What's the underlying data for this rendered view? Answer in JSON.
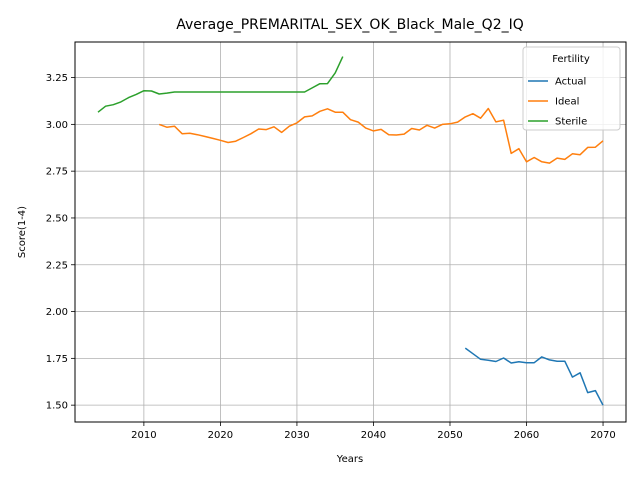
{
  "chart_data": {
    "type": "line",
    "title": "Average_PREMARITAL_SEX_OK_Black_Male_Q2_IQ",
    "xlabel": "Years",
    "ylabel": "Score(1-4)",
    "xlim": [
      2001,
      2073
    ],
    "ylim": [
      1.41,
      3.44
    ],
    "xticks": [
      2010,
      2020,
      2030,
      2040,
      2050,
      2060,
      2070
    ],
    "yticks": [
      1.5,
      1.75,
      2.0,
      2.25,
      2.5,
      2.75,
      3.0,
      3.25
    ],
    "xtick_labels": [
      "2010",
      "2020",
      "2030",
      "2040",
      "2050",
      "2060",
      "2070"
    ],
    "ytick_labels": [
      "1.50",
      "1.75",
      "2.00",
      "2.25",
      "2.50",
      "2.75",
      "3.00",
      "3.25"
    ],
    "grid": true,
    "legend": {
      "title": "Fertility",
      "placement": "top-right"
    },
    "series": [
      {
        "name": "Actual",
        "color": "#1f77b4",
        "x": [
          2052,
          2053,
          2054,
          2055,
          2056,
          2057,
          2058,
          2059,
          2060,
          2061,
          2062,
          2063,
          2064,
          2065,
          2066,
          2067,
          2068,
          2069,
          2070
        ],
        "y": [
          1.805,
          1.775,
          1.745,
          1.74,
          1.733,
          1.752,
          1.725,
          1.732,
          1.727,
          1.727,
          1.758,
          1.742,
          1.735,
          1.735,
          1.65,
          1.673,
          1.567,
          1.578,
          1.5
        ]
      },
      {
        "name": "Ideal",
        "color": "#ff7f0e",
        "x": [
          2012,
          2013,
          2014,
          2015,
          2016,
          2017,
          2018,
          2019,
          2020,
          2021,
          2022,
          2023,
          2024,
          2025,
          2026,
          2027,
          2028,
          2029,
          2030,
          2031,
          2032,
          2033,
          2034,
          2035,
          2036,
          2037,
          2038,
          2039,
          2040,
          2041,
          2042,
          2043,
          2044,
          2045,
          2046,
          2047,
          2048,
          2049,
          2050,
          2051,
          2052,
          2053,
          2054,
          2055,
          2056,
          2057,
          2058,
          2059,
          2060,
          2061,
          2062,
          2063,
          2064,
          2065,
          2066,
          2067,
          2068,
          2069,
          2070
        ],
        "y": [
          3.0,
          2.985,
          2.99,
          2.95,
          2.952,
          2.945,
          2.935,
          2.925,
          2.915,
          2.903,
          2.91,
          2.93,
          2.95,
          2.975,
          2.972,
          2.987,
          2.957,
          2.99,
          3.008,
          3.04,
          3.045,
          3.07,
          3.083,
          3.065,
          3.065,
          3.025,
          3.012,
          2.98,
          2.965,
          2.973,
          2.945,
          2.943,
          2.948,
          2.978,
          2.97,
          2.995,
          2.98,
          3.0,
          3.003,
          3.012,
          3.04,
          3.057,
          3.033,
          3.085,
          3.013,
          3.022,
          2.845,
          2.87,
          2.8,
          2.823,
          2.8,
          2.793,
          2.82,
          2.813,
          2.843,
          2.838,
          2.877,
          2.878,
          2.912
        ]
      },
      {
        "name": "Sterile",
        "color": "#2ca02c",
        "x": [
          2004,
          2005,
          2006,
          2007,
          2008,
          2009,
          2010,
          2011,
          2012,
          2013,
          2014,
          2015,
          2016,
          2017,
          2018,
          2019,
          2020,
          2021,
          2022,
          2023,
          2024,
          2025,
          2026,
          2027,
          2028,
          2029,
          2030,
          2031,
          2032,
          2033,
          2034,
          2035,
          2036
        ],
        "y": [
          3.065,
          3.097,
          3.105,
          3.12,
          3.143,
          3.16,
          3.18,
          3.178,
          3.162,
          3.167,
          3.173,
          3.173,
          3.173,
          3.173,
          3.173,
          3.173,
          3.173,
          3.173,
          3.173,
          3.173,
          3.173,
          3.173,
          3.173,
          3.173,
          3.173,
          3.173,
          3.173,
          3.173,
          3.195,
          3.217,
          3.218,
          3.275,
          3.362
        ]
      }
    ]
  }
}
